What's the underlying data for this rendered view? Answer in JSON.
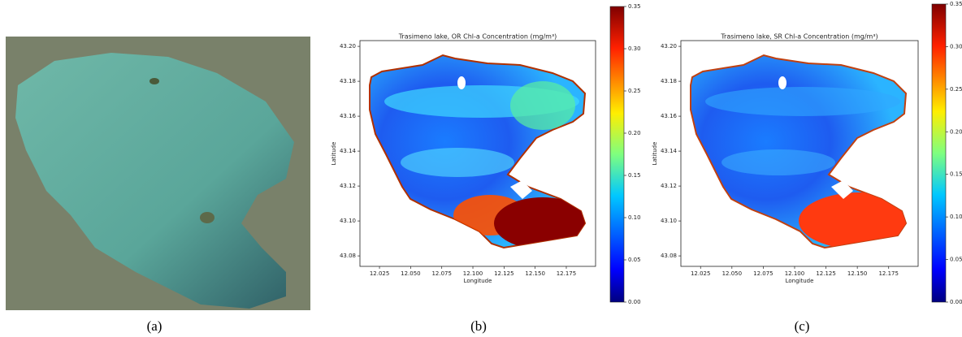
{
  "panels": [
    {
      "caption": "(a)"
    },
    {
      "caption": "(b)",
      "title": "Trasimeno lake, OR Chl-a Concentration (mg/m³)",
      "xlabel": "Longitude",
      "ylabel": "Latitude",
      "xlim": [
        12.0093,
        12.1985
      ],
      "ylim": [
        43.074,
        43.2033
      ],
      "xticks": [
        12.025,
        {
          "value": 12.05,
          "label": "12.050"
        },
        12.075,
        {
          "value": 12.1,
          "label": "12.100"
        },
        12.125,
        {
          "value": 12.15,
          "label": "12.150"
        },
        12.175
      ],
      "yticks": [
        43.08,
        {
          "value": 43.1,
          "label": "43.10"
        },
        43.12,
        43.14,
        43.16,
        43.18,
        {
          "value": 43.2,
          "label": "43.20"
        }
      ],
      "colorbar": {
        "lim": [
          0,
          0.35
        ],
        "ticks": [
          {
            "value": 0,
            "label": "0.00"
          },
          0.05,
          {
            "value": 0.1,
            "label": "0.10"
          },
          0.15,
          {
            "value": 0.2,
            "label": "0.20"
          },
          0.25,
          {
            "value": 0.3,
            "label": "0.30"
          },
          0.35
        ]
      }
    },
    {
      "caption": "(c)",
      "title": "Trasimeno lake, SR Chl-a Concentration (mg/m³)",
      "xlabel": "Longitude",
      "ylabel": "Latitude",
      "xlim": [
        12.0093,
        12.1985
      ],
      "ylim": [
        43.074,
        43.2033
      ],
      "xticks": [
        12.025,
        {
          "value": 12.05,
          "label": "12.050"
        },
        12.075,
        {
          "value": 12.1,
          "label": "12.100"
        },
        12.125,
        {
          "value": 12.15,
          "label": "12.150"
        },
        12.175
      ],
      "yticks": [
        43.08,
        {
          "value": 43.1,
          "label": "43.10"
        },
        43.12,
        43.14,
        43.16,
        43.18,
        {
          "value": 43.2,
          "label": "43.20"
        }
      ],
      "colorbar": {
        "lim": [
          0,
          0.35
        ],
        "ticks": [
          {
            "value": 0,
            "label": "0.00"
          },
          0.05,
          {
            "value": 0.1,
            "label": "0.10"
          },
          0.15,
          {
            "value": 0.2,
            "label": "0.20"
          },
          0.25,
          {
            "value": 0.3,
            "label": "0.30"
          },
          0.35
        ]
      }
    }
  ]
}
